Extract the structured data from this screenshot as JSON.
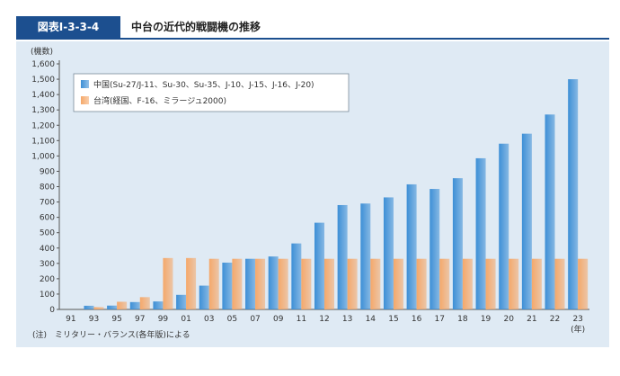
{
  "header": {
    "figure_label": "図表Ⅰ-3-3-4",
    "title": "中台の近代的戦闘機の推移"
  },
  "note": "(注)　ミリタリー・バランス(各年版)による",
  "colors": {
    "china": "#3d8fd6",
    "taiwan": "#f5a86a",
    "panel": "#dfeaf4",
    "header": "#1c4f8f"
  },
  "chart_data": {
    "type": "bar",
    "ylabel": "(機数)",
    "xlabel": "(年)",
    "ylim": [
      0,
      1600
    ],
    "yticks": [
      0,
      100,
      200,
      300,
      400,
      500,
      600,
      700,
      800,
      900,
      1000,
      1100,
      1200,
      1300,
      1400,
      1500,
      1600
    ],
    "ytick_labels": [
      "0",
      "100",
      "200",
      "300",
      "400",
      "500",
      "600",
      "700",
      "800",
      "900",
      "1,000",
      "1,100",
      "1,200",
      "1,300",
      "1,400",
      "1,500",
      "1,600"
    ],
    "grid": false,
    "legend_position": "top-left",
    "categories": [
      "91",
      "93",
      "95",
      "97",
      "99",
      "01",
      "03",
      "05",
      "07",
      "09",
      "11",
      "12",
      "13",
      "14",
      "15",
      "16",
      "17",
      "18",
      "19",
      "20",
      "21",
      "22",
      "23"
    ],
    "series": [
      {
        "name": "中国(Su-27/J-11、Su-30、Su-35、J-10、J-15、J-16、J-20)",
        "values": [
          0,
          24,
          25,
          48,
          52,
          95,
          155,
          305,
          330,
          345,
          430,
          565,
          680,
          690,
          730,
          815,
          785,
          855,
          985,
          1080,
          1145,
          1270,
          1500
        ]
      },
      {
        "name": "台湾(経国、F-16、ミラージュ2000)",
        "values": [
          0,
          15,
          50,
          80,
          335,
          335,
          330,
          330,
          330,
          330,
          330,
          330,
          330,
          330,
          330,
          330,
          330,
          330,
          330,
          330,
          330,
          330,
          330
        ]
      }
    ]
  }
}
